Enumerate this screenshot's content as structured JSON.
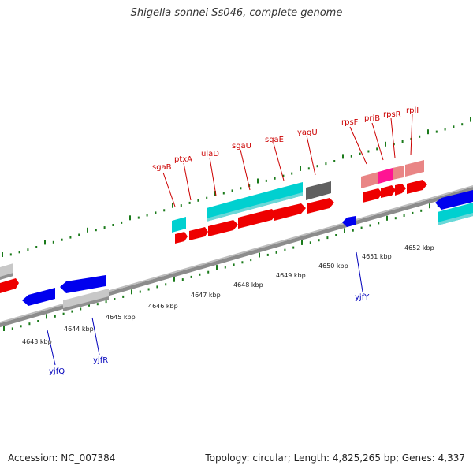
{
  "header": {
    "title": "Shigella sonnei Ss046, complete genome"
  },
  "footer": {
    "accession": "Accession: NC_007384",
    "stats": "Topology: circular; Length: 4,825,265 bp; Genes: 4,337"
  },
  "colors": {
    "backbone": "#8c8c8c",
    "tick": "#1a7a1a",
    "cds_forward": "#ff0000",
    "cds_reverse": "#0000ee",
    "rrna_trna": "#00c8c8",
    "pseudo": "#c0c0c0",
    "rRNA_pink": "#e98585",
    "misc_magenta": "#ff1493",
    "dark_gray": "#606060",
    "label_forward": "#cc0000",
    "label_reverse": "#0000bb"
  },
  "kbp_labels": [
    "4643 kbp",
    "4644 kbp",
    "4645 kbp",
    "4646 kbp",
    "4647 kbp",
    "4648 kbp",
    "4649 kbp",
    "4650 kbp",
    "4651 kbp",
    "4652 kbp"
  ],
  "top_gene_labels": [
    "sgaB",
    "ptxA",
    "ulaD",
    "sgaU",
    "sgaE",
    "yagU",
    "rpsF",
    "priB",
    "rpsR",
    "rplI"
  ],
  "bottom_gene_labels": [
    "yjfQ",
    "yjfR",
    "yjfY"
  ]
}
